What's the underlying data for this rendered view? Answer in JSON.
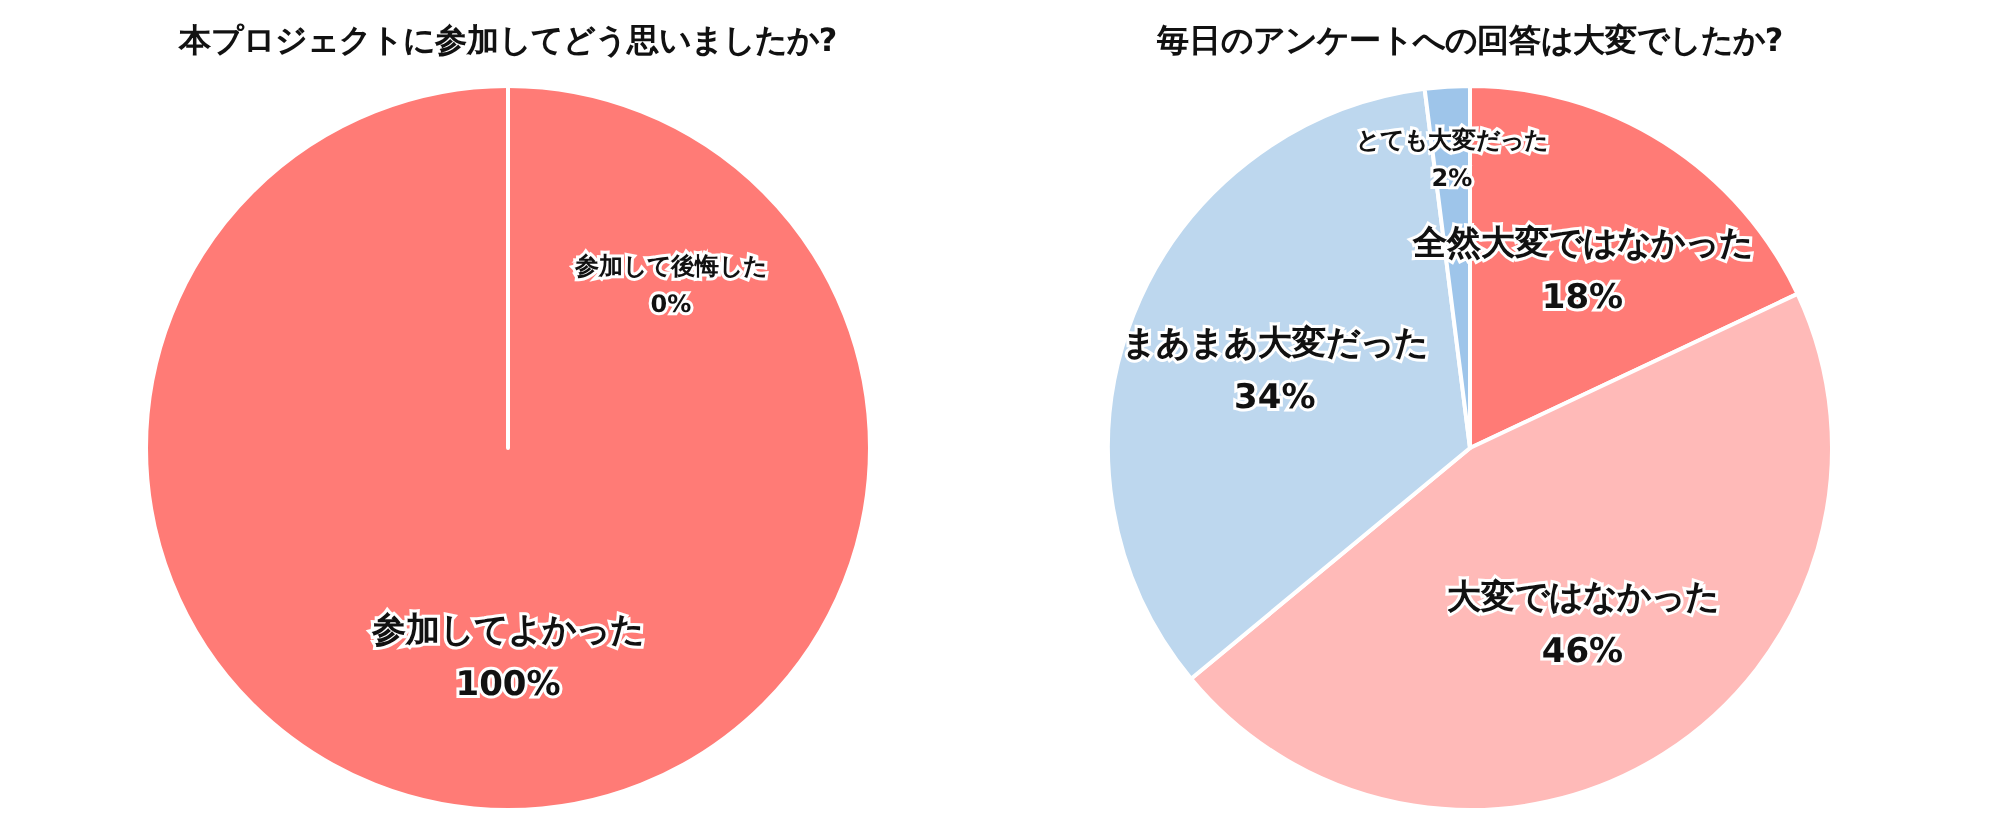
{
  "chart_data": [
    {
      "type": "pie",
      "title": "本プロジェクトに参加してどう思いましたか?",
      "categories": [
        "参加してよかった",
        "参加して後悔した"
      ],
      "values": [
        100,
        0
      ],
      "value_labels": [
        "100%",
        "0%"
      ],
      "colors": [
        "#ff7b76",
        "#ffbab8"
      ]
    },
    {
      "type": "pie",
      "title": "毎日のアンケートへの回答は大変でしたか?",
      "categories": [
        "全然大変ではなかった",
        "大変ではなかった",
        "まあまあ大変だった",
        "とても大変だった"
      ],
      "values": [
        18,
        46,
        34,
        2
      ],
      "value_labels": [
        "18%",
        "46%",
        "34%",
        "2%"
      ],
      "colors": [
        "#ff7b76",
        "#ffbab8",
        "#bdd7ee",
        "#9ec5ea"
      ]
    }
  ]
}
